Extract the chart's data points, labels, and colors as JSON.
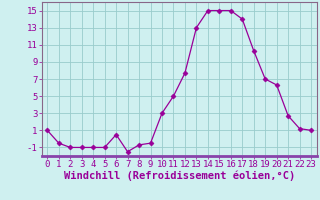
{
  "hours": [
    0,
    1,
    2,
    3,
    4,
    5,
    6,
    7,
    8,
    9,
    10,
    11,
    12,
    13,
    14,
    15,
    16,
    17,
    18,
    19,
    20,
    21,
    22,
    23
  ],
  "values": [
    1,
    -0.5,
    -1,
    -1,
    -1,
    -1,
    0.5,
    -1.5,
    -0.7,
    -0.5,
    3,
    5,
    7.7,
    13,
    15,
    15,
    15,
    14,
    10.3,
    7,
    6.3,
    2.7,
    1.2,
    1
  ],
  "line_color": "#990099",
  "marker": "D",
  "marker_size": 2.5,
  "bg_color": "#cff0f0",
  "grid_color": "#99cccc",
  "xlabel": "Windchill (Refroidissement éolien,°C)",
  "ylim": [
    -2,
    16
  ],
  "yticks": [
    -1,
    1,
    3,
    5,
    7,
    9,
    11,
    13,
    15
  ],
  "xticks": [
    0,
    1,
    2,
    3,
    4,
    5,
    6,
    7,
    8,
    9,
    10,
    11,
    12,
    13,
    14,
    15,
    16,
    17,
    18,
    19,
    20,
    21,
    22,
    23
  ],
  "tick_fontsize": 6.5,
  "xlabel_fontsize": 7.5
}
